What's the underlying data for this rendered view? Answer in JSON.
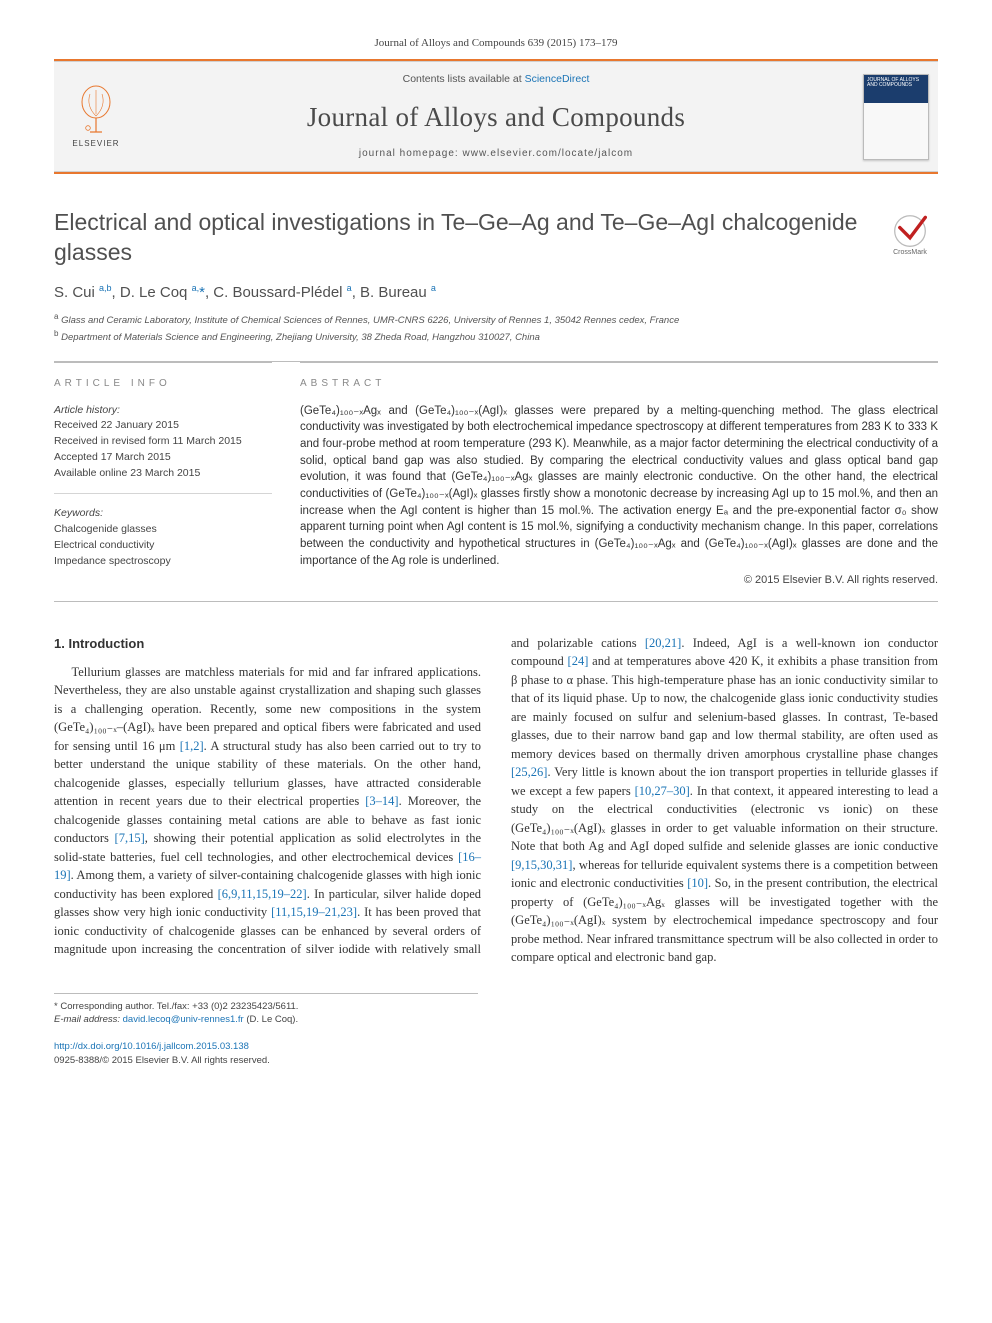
{
  "citation": "Journal of Alloys and Compounds 639 (2015) 173–179",
  "banner": {
    "contents_prefix": "Contents lists available at ",
    "contents_link": "ScienceDirect",
    "journal_title": "Journal of Alloys and Compounds",
    "homepage_prefix": "journal homepage: ",
    "homepage_url": "www.elsevier.com/locate/jalcom",
    "publisher_word": "ELSEVIER",
    "cover_text": "JOURNAL OF ALLOYS AND COMPOUNDS"
  },
  "colors": {
    "accent_orange": "#e8772e",
    "link_blue": "#1b74b6",
    "cover_band": "#1b3d6d",
    "text_gray": "#505050",
    "rule_gray": "#bcbcbc"
  },
  "article": {
    "title": "Electrical and optical investigations in Te–Ge–Ag and Te–Ge–AgI chalcogenide glasses",
    "crossmark_label": "CrossMark"
  },
  "authors_html": "S. Cui <sup>a,b</sup>, D. Le Coq <sup>a,</sup><span class='star'>*</span>, C. Boussard-Plédel <sup>a</sup>, B. Bureau <sup>a</sup>",
  "affiliations": [
    {
      "marker": "a",
      "text": "Glass and Ceramic Laboratory, Institute of Chemical Sciences of Rennes, UMR-CNRS 6226, University of Rennes 1, 35042 Rennes cedex, France"
    },
    {
      "marker": "b",
      "text": "Department of Materials Science and Engineering, Zhejiang University, 38 Zheda Road, Hangzhou 310027, China"
    }
  ],
  "article_info": {
    "label": "ARTICLE INFO",
    "history_head": "Article history:",
    "history": [
      "Received 22 January 2015",
      "Received in revised form 11 March 2015",
      "Accepted 17 March 2015",
      "Available online 23 March 2015"
    ],
    "keywords_head": "Keywords:",
    "keywords": [
      "Chalcogenide glasses",
      "Electrical conductivity",
      "Impedance spectroscopy"
    ]
  },
  "abstract": {
    "label": "ABSTRACT",
    "text": "(GeTe₄)₁₀₀₋ₓAgₓ and (GeTe₄)₁₀₀₋ₓ(AgI)ₓ glasses were prepared by a melting-quenching method. The glass electrical conductivity was investigated by both electrochemical impedance spectroscopy at different temperatures from 283 K to 333 K and four-probe method at room temperature (293 K). Meanwhile, as a major factor determining the electrical conductivity of a solid, optical band gap was also studied. By comparing the electrical conductivity values and glass optical band gap evolution, it was found that (GeTe₄)₁₀₀₋ₓAgₓ glasses are mainly electronic conductive. On the other hand, the electrical conductivities of (GeTe₄)₁₀₀₋ₓ(AgI)ₓ glasses firstly show a monotonic decrease by increasing AgI up to 15 mol.%, and then an increase when the AgI content is higher than 15 mol.%. The activation energy Eₐ and the pre-exponential factor σ₀ show apparent turning point when AgI content is 15 mol.%, signifying a conductivity mechanism change. In this paper, correlations between the conductivity and hypothetical structures in (GeTe₄)₁₀₀₋ₓAgₓ and (GeTe₄)₁₀₀₋ₓ(AgI)ₓ glasses are done and the importance of the Ag role is underlined.",
    "copyright": "© 2015 Elsevier B.V. All rights reserved."
  },
  "body": {
    "section_heading": "1. Introduction",
    "col1_p1": "Tellurium glasses are matchless materials for mid and far infrared applications. Nevertheless, they are also unstable against crystallization and shaping such glasses is a challenging operation. Recently, some new compositions in the system (GeTe₄)₁₀₀₋ₓ–(AgI)ₓ have been prepared and optical fibers were fabricated and used for sensing until 16 μm ",
    "col1_ref1": "[1,2]",
    "col1_p1b": ". A structural study has also been carried out to try to better understand the unique stability of these materials. On the other hand, chalcogenide glasses, especially tellurium glasses, have attracted considerable attention in recent years due to their electrical properties ",
    "col1_ref2": "[3–14]",
    "col1_p1c": ". Moreover, the chalcogenide glasses containing metal cations are able to behave as fast ionic conductors ",
    "col1_ref3": "[7,15]",
    "col1_p1d": ", showing their potential application as solid electrolytes in the solid-state batteries, fuel cell technologies, and other electrochemical devices ",
    "col1_ref4": "[16–19]",
    "col1_p1e": ". Among them, a variety of silver-containing chalcogenide glasses with high ionic conductivity has been explored ",
    "col1_ref5": "[6,9,11,15,19–22]",
    "col1_p1f": ". In particular, silver halide doped glasses show very high ionic conductivity ",
    "col1_ref6": "[11,15,19–21,23]",
    "col1_p1g": ". It has been proved that ionic conductivity of chalcogenide glasses",
    "col2_p1": "can be enhanced by several orders of magnitude upon increasing the concentration of silver iodide with relatively small and polarizable cations ",
    "col2_ref1": "[20,21]",
    "col2_p1b": ". Indeed, AgI is a well-known ion conductor compound ",
    "col2_ref2": "[24]",
    "col2_p1c": " and at temperatures above 420 K, it exhibits a phase transition from β phase to α phase. This high-temperature phase has an ionic conductivity similar to that of its liquid phase. Up to now, the chalcogenide glass ionic conductivity studies are mainly focused on sulfur and selenium-based glasses. In contrast, Te-based glasses, due to their narrow band gap and low thermal stability, are often used as memory devices based on thermally driven amorphous crystalline phase changes ",
    "col2_ref3": "[25,26]",
    "col2_p1d": ". Very little is known about the ion transport properties in telluride glasses if we except a few papers ",
    "col2_ref4": "[10,27–30]",
    "col2_p1e": ". In that context, it appeared interesting to lead a study on the electrical conductivities (electronic vs ionic) on these (GeTe₄)₁₀₀₋ₓ(AgI)ₓ glasses in order to get valuable information on their structure. Note that both Ag and AgI doped sulfide and selenide glasses are ionic conductive ",
    "col2_ref5": "[9,15,30,31]",
    "col2_p1f": ", whereas for telluride equivalent systems there is a competition between ionic and electronic conductivities ",
    "col2_ref6": "[10]",
    "col2_p1g": ". So, in the present contribution, the electrical property of (GeTe₄)₁₀₀₋ₓAgₓ glasses will be investigated together with the (GeTe₄)₁₀₀₋ₓ(AgI)ₓ system by electrochemical impedance spectroscopy and four probe method. Near infrared transmittance spectrum will be also collected in order to compare optical and electronic band gap."
  },
  "footnote": {
    "corresponding": "* Corresponding author. Tel./fax: +33 (0)2 23235423/5611.",
    "email_label": "E-mail address: ",
    "email": "david.lecoq@univ-rennes1.fr",
    "email_suffix": " (D. Le Coq)."
  },
  "footer": {
    "doi_prefix": "http://dx.doi.org/",
    "doi": "10.1016/j.jallcom.2015.03.138",
    "issn_line": "0925-8388/© 2015 Elsevier B.V. All rights reserved."
  }
}
